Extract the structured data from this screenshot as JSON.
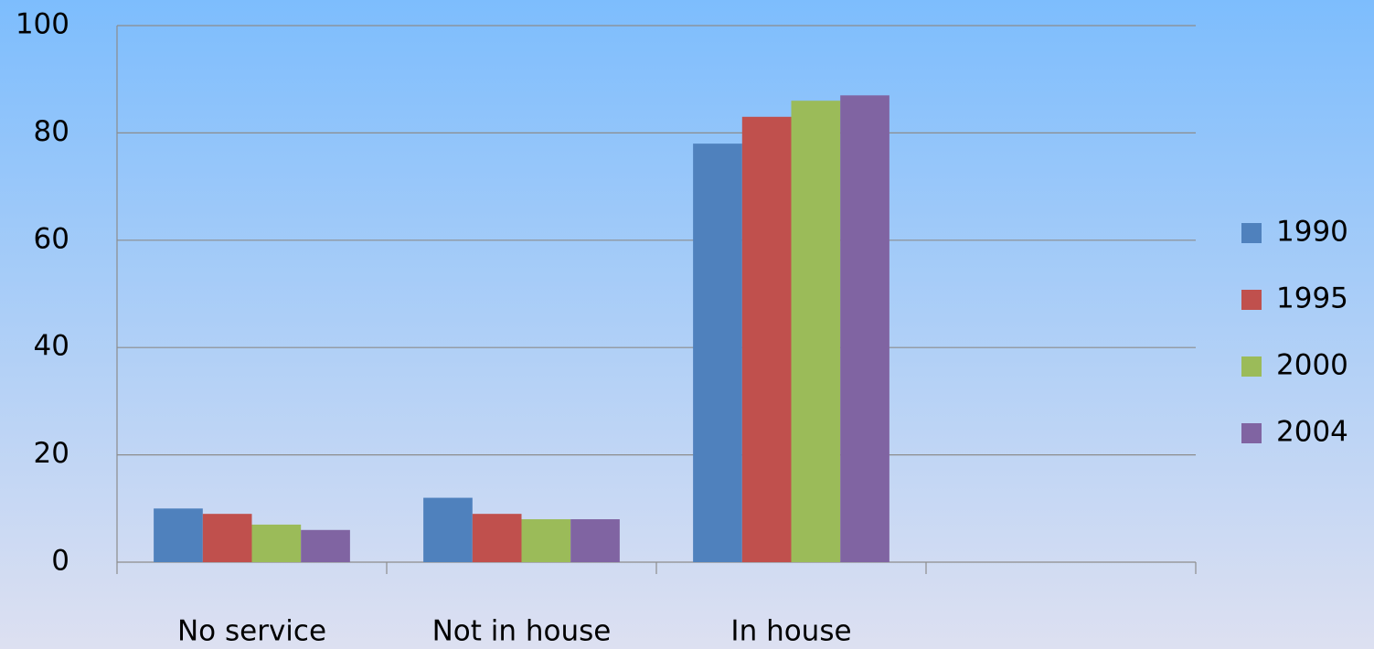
{
  "chart_data": {
    "type": "bar",
    "categories": [
      "No service",
      "Not in house",
      "In house",
      null
    ],
    "series": [
      {
        "name": "1990",
        "color": "#4f81bd",
        "values": [
          10,
          12,
          78,
          null
        ]
      },
      {
        "name": "1995",
        "color": "#c0504d",
        "values": [
          9,
          9,
          83,
          null
        ]
      },
      {
        "name": "2000",
        "color": "#9bbb59",
        "values": [
          7,
          8,
          86,
          null
        ]
      },
      {
        "name": "2004",
        "color": "#8064a2",
        "values": [
          6,
          8,
          87,
          null
        ]
      }
    ],
    "ylim": [
      0,
      100
    ],
    "yticks": [
      0,
      20,
      40,
      60,
      80,
      100
    ],
    "grid": true,
    "legend": "right"
  }
}
